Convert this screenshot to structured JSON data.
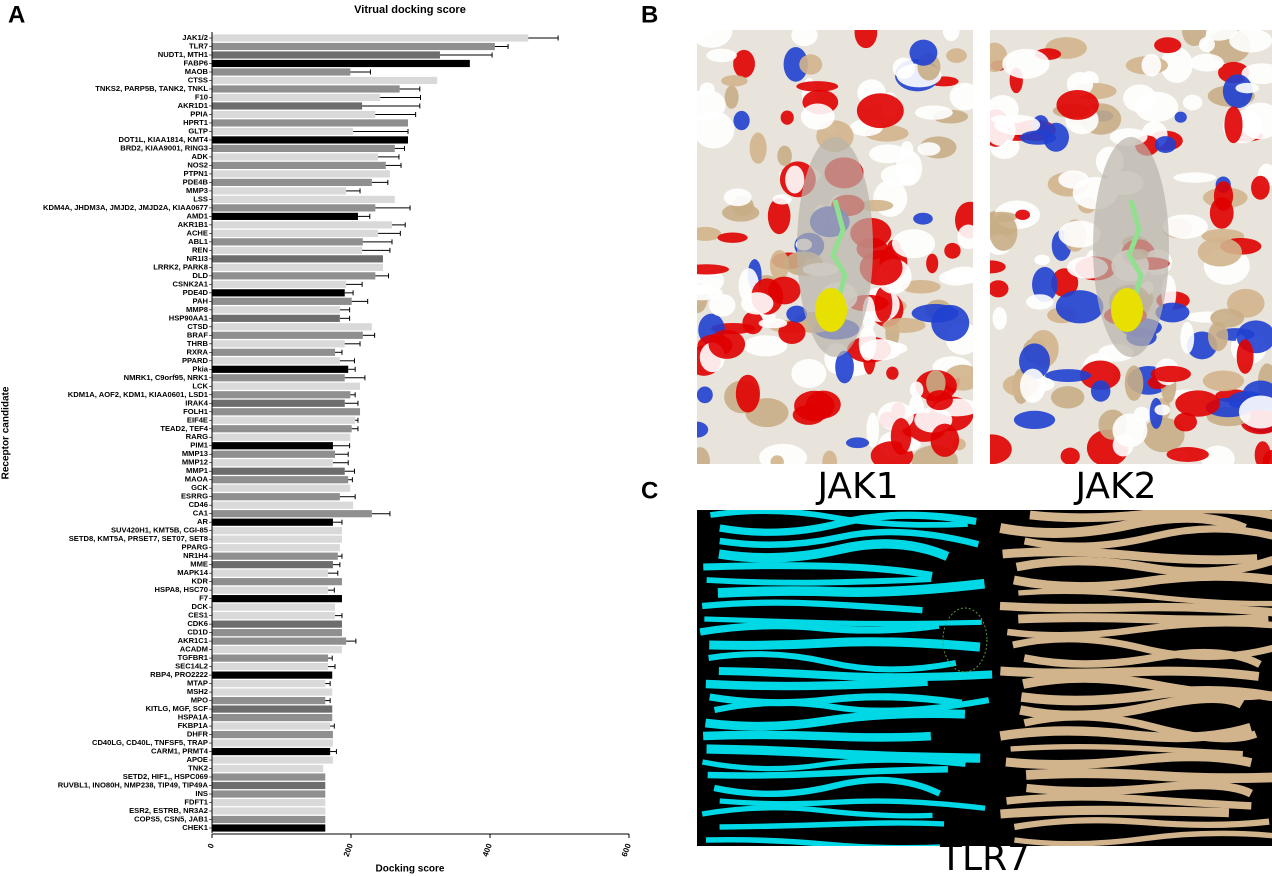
{
  "chart_data": {
    "type": "barh",
    "title": "Vitrual docking score",
    "xlabel": "Docking score",
    "ylabel": "Receptor candidate",
    "categories": [
      "JAK1/2",
      "TLR7",
      "NUDT1, MTH1",
      "FABP6",
      "MAOB",
      "CTSS",
      "TNKS2, PARP5B, TANK2, TNKL",
      "F10",
      "AKR1D1",
      "PPIA",
      "HPRT1",
      "GLTP",
      "DOT1L, KIAA1814, KMT4",
      "BRD2, KIAA9001, RING3",
      "ADK",
      "NOS2",
      "PTPN1",
      "PDE4B",
      "MMP3",
      "LSS",
      "KDM4A, JHDM3A, JMJD2, JMJD2A, KIAA0677",
      "AMD1",
      "AKR1B1",
      "ACHE",
      "ABL1",
      "REN",
      "NR1I3",
      "LRRK2, PARK8",
      "DLD",
      "CSNK2A1",
      "PDE4D",
      "PAH",
      "MMP8",
      "HSP90AA1",
      "CTSD",
      "BRAF",
      "THRB",
      "RXRA",
      "PPARD",
      "Pkia",
      "NMRK1, C9orf95, NRK1",
      "LCK",
      "KDM1A, AOF2, KDM1, KIAA0601, LSD1",
      "IRAK4",
      "FOLH1",
      "EIF4E",
      "TEAD2, TEF4",
      "RARG",
      "PIM1",
      "MMP13",
      "MMP12",
      "MMP1",
      "MAOA",
      "GCK",
      "ESRRG",
      "CD46",
      "CA1",
      "AR",
      "SUV420H1, KMT5B, CGI-85",
      "SETD8, KMT5A, PRSET7, SET07, SET8",
      "PPARG",
      "NR1H4",
      "MME",
      "MAPK14",
      "KDR",
      "HSPA8, HSC70",
      "F7",
      "DCK",
      "CES1",
      "CDK6",
      "CD1D",
      "AKR1C1",
      "ACADM",
      "TGFBR1",
      "SEC14L2",
      "RBP4, PRO2222",
      "MTAP",
      "MSH2",
      "MPO",
      "KITLG, MGF, SCF",
      "HSPA1A",
      "FKBP1A",
      "DHFR",
      "CD40LG, CD40L, TNFSF5, TRAP",
      "CARM1, PRMT4",
      "APOE",
      "TNK2",
      "SETD2, HIF1,, HSPC069",
      "RUVBL1, INO80H, NMP238, TIP49, TIP49A",
      "INS",
      "FDFT1",
      "ESR2, ESTRB, NR3A2",
      "COPS5, CSN5, JAB1",
      "CHEK1"
    ],
    "values": [
      455,
      407,
      328,
      371,
      199,
      324,
      270,
      242,
      216,
      235,
      282,
      203,
      282,
      263,
      239,
      250,
      256,
      230,
      193,
      263,
      235,
      210,
      259,
      239,
      217,
      216,
      246,
      246,
      235,
      193,
      191,
      201,
      184,
      184,
      230,
      217,
      191,
      177,
      184,
      196,
      191,
      213,
      199,
      191,
      213,
      206,
      201,
      199,
      174,
      177,
      174,
      191,
      196,
      199,
      184,
      203,
      230,
      174,
      187,
      187,
      184,
      181,
      174,
      167,
      187,
      167,
      187,
      177,
      177,
      187,
      187,
      193,
      187,
      167,
      167,
      173,
      163,
      173,
      163,
      173,
      173,
      170,
      174,
      174,
      170,
      174,
      160,
      163,
      163,
      163,
      163,
      163,
      163,
      163
    ],
    "errors": [
      43,
      19,
      75,
      null,
      29,
      null,
      29,
      58,
      83,
      58,
      null,
      79,
      null,
      14,
      30,
      22,
      null,
      23,
      20,
      null,
      50,
      17,
      19,
      32,
      42,
      40,
      null,
      null,
      19,
      23,
      12,
      23,
      14,
      14,
      null,
      17,
      22,
      10,
      21,
      10,
      29,
      null,
      7,
      19,
      null,
      4,
      9,
      null,
      24,
      19,
      22,
      14,
      6,
      null,
      22,
      null,
      26,
      13,
      null,
      null,
      null,
      6,
      10,
      14,
      null,
      9,
      null,
      null,
      10,
      null,
      null,
      14,
      null,
      6,
      10,
      null,
      7,
      null,
      7,
      null,
      null,
      6,
      null,
      null,
      9,
      null,
      null,
      null,
      null,
      null,
      null,
      null,
      null,
      null
    ],
    "colors": [
      "#d9d9d9",
      "#8f8f8f",
      "#6d6d6d",
      "#000000",
      "#8f8f8f",
      "#d9d9d9",
      "#8f8f8f",
      "#d9d9d9",
      "#6d6d6d",
      "#d9d9d9",
      "#8f8f8f",
      "#d9d9d9",
      "#000000",
      "#8f8f8f",
      "#d9d9d9",
      "#8f8f8f",
      "#d9d9d9",
      "#8f8f8f",
      "#d9d9d9",
      "#d9d9d9",
      "#8f8f8f",
      "#000000",
      "#d9d9d9",
      "#d9d9d9",
      "#8f8f8f",
      "#d9d9d9",
      "#6d6d6d",
      "#d9d9d9",
      "#8f8f8f",
      "#d9d9d9",
      "#000000",
      "#8f8f8f",
      "#d9d9d9",
      "#6d6d6d",
      "#d9d9d9",
      "#8f8f8f",
      "#d9d9d9",
      "#8f8f8f",
      "#d9d9d9",
      "#000000",
      "#8f8f8f",
      "#d9d9d9",
      "#8f8f8f",
      "#6d6d6d",
      "#8f8f8f",
      "#d9d9d9",
      "#8f8f8f",
      "#d9d9d9",
      "#000000",
      "#8f8f8f",
      "#d9d9d9",
      "#6d6d6d",
      "#8f8f8f",
      "#d9d9d9",
      "#8f8f8f",
      "#d9d9d9",
      "#8f8f8f",
      "#000000",
      "#d9d9d9",
      "#d9d9d9",
      "#d9d9d9",
      "#8f8f8f",
      "#6d6d6d",
      "#d9d9d9",
      "#8f8f8f",
      "#d9d9d9",
      "#000000",
      "#d9d9d9",
      "#d9d9d9",
      "#6d6d6d",
      "#8f8f8f",
      "#8f8f8f",
      "#d9d9d9",
      "#8f8f8f",
      "#d9d9d9",
      "#000000",
      "#d9d9d9",
      "#d9d9d9",
      "#8f8f8f",
      "#6d6d6d",
      "#8f8f8f",
      "#d9d9d9",
      "#8f8f8f",
      "#d9d9d9",
      "#000000",
      "#d9d9d9",
      "#d9d9d9",
      "#8f8f8f",
      "#6d6d6d",
      "#8f8f8f",
      "#d9d9d9",
      "#d9d9d9",
      "#8f8f8f",
      "#000000"
    ],
    "xlim": [
      0,
      600
    ],
    "xticks": [
      0,
      200,
      400,
      600
    ]
  },
  "labels": {
    "panel_a": "A",
    "panel_b": "B",
    "panel_c": "C",
    "jak1": "JAK1",
    "jak2": "JAK2",
    "tlr7": "TLR7"
  }
}
